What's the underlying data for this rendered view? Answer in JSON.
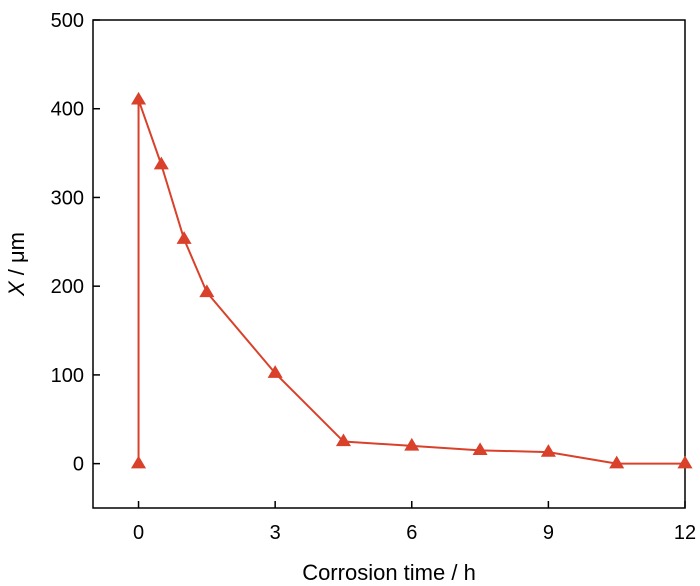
{
  "chart_data": {
    "type": "line",
    "xlabel": "Corrosion time / h",
    "ylabel": "X / μm",
    "ylabel_italic_part": "X",
    "ylabel_rest": " / μm",
    "xlim": [
      -1,
      12
    ],
    "ylim": [
      -50,
      500
    ],
    "xticks": [
      "0",
      "3",
      "6",
      "9",
      "12"
    ],
    "yticks": [
      "0",
      "100",
      "200",
      "300",
      "400",
      "500"
    ],
    "series": [
      {
        "color": "#d9412b",
        "marker": "triangle",
        "points": [
          {
            "x": 0,
            "y": 0
          },
          {
            "x": 0,
            "y": 410
          },
          {
            "x": 0.5,
            "y": 337
          },
          {
            "x": 1,
            "y": 253
          },
          {
            "x": 1.5,
            "y": 193
          },
          {
            "x": 3,
            "y": 102
          },
          {
            "x": 4.5,
            "y": 25
          },
          {
            "x": 6,
            "y": 20
          },
          {
            "x": 7.5,
            "y": 15
          },
          {
            "x": 9,
            "y": 13
          },
          {
            "x": 10.5,
            "y": 0
          },
          {
            "x": 12,
            "y": 0
          }
        ]
      }
    ],
    "grid": false,
    "legend": "none"
  }
}
